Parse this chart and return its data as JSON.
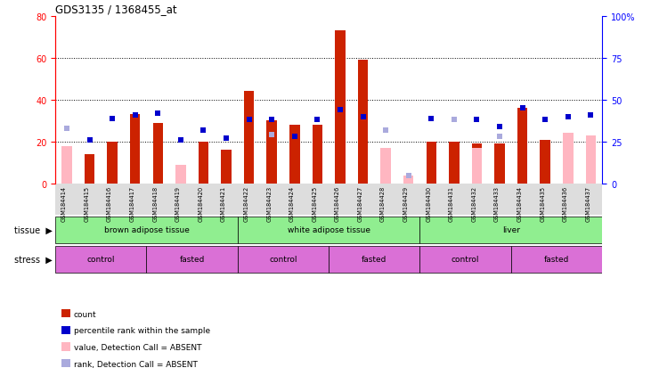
{
  "title": "GDS3135 / 1368455_at",
  "samples": [
    "GSM184414",
    "GSM184415",
    "GSM184416",
    "GSM184417",
    "GSM184418",
    "GSM184419",
    "GSM184420",
    "GSM184421",
    "GSM184422",
    "GSM184423",
    "GSM184424",
    "GSM184425",
    "GSM184426",
    "GSM184427",
    "GSM184428",
    "GSM184429",
    "GSM184430",
    "GSM184431",
    "GSM184432",
    "GSM184433",
    "GSM184434",
    "GSM184435",
    "GSM184436",
    "GSM184437"
  ],
  "count_values": [
    0,
    14,
    20,
    33,
    29,
    0,
    20,
    16,
    44,
    30,
    28,
    28,
    73,
    59,
    0,
    0,
    20,
    20,
    19,
    19,
    36,
    21,
    0,
    0
  ],
  "count_absent": [
    18,
    0,
    0,
    0,
    0,
    9,
    0,
    0,
    0,
    0,
    0,
    0,
    0,
    0,
    17,
    4,
    0,
    0,
    17,
    0,
    0,
    0,
    24,
    23
  ],
  "rank_present": [
    0,
    26,
    39,
    41,
    42,
    26,
    32,
    27,
    38,
    38,
    28,
    38,
    44,
    40,
    0,
    0,
    39,
    0,
    38,
    34,
    45,
    38,
    40,
    41
  ],
  "rank_absent": [
    33,
    0,
    0,
    0,
    0,
    0,
    0,
    0,
    0,
    29,
    0,
    0,
    0,
    0,
    32,
    5,
    0,
    38,
    0,
    28,
    0,
    0,
    0,
    0
  ],
  "tissue_groups": [
    {
      "label": "brown adipose tissue",
      "start": 0,
      "end": 7,
      "color": "#90EE90"
    },
    {
      "label": "white adipose tissue",
      "start": 8,
      "end": 15,
      "color": "#90EE90"
    },
    {
      "label": "liver",
      "start": 16,
      "end": 23,
      "color": "#90EE90"
    }
  ],
  "stress_groups": [
    {
      "label": "control",
      "start": 0,
      "end": 3,
      "color": "#DA70D6"
    },
    {
      "label": "fasted",
      "start": 4,
      "end": 7,
      "color": "#DA70D6"
    },
    {
      "label": "control",
      "start": 8,
      "end": 11,
      "color": "#DA70D6"
    },
    {
      "label": "fasted",
      "start": 12,
      "end": 15,
      "color": "#DA70D6"
    },
    {
      "label": "control",
      "start": 16,
      "end": 19,
      "color": "#DA70D6"
    },
    {
      "label": "fasted",
      "start": 20,
      "end": 23,
      "color": "#DA70D6"
    }
  ],
  "ylim_left": [
    0,
    80
  ],
  "ylim_right": [
    0,
    100
  ],
  "yticks_left": [
    0,
    20,
    40,
    60,
    80
  ],
  "yticks_right": [
    0,
    25,
    50,
    75,
    100
  ],
  "bar_color_red": "#CC2200",
  "bar_color_pink": "#FFB6C1",
  "dot_color_blue": "#0000CC",
  "dot_color_lightblue": "#AAAADD",
  "xticklabel_bg": "#DDDDDD",
  "plot_bg": "#FFFFFF"
}
